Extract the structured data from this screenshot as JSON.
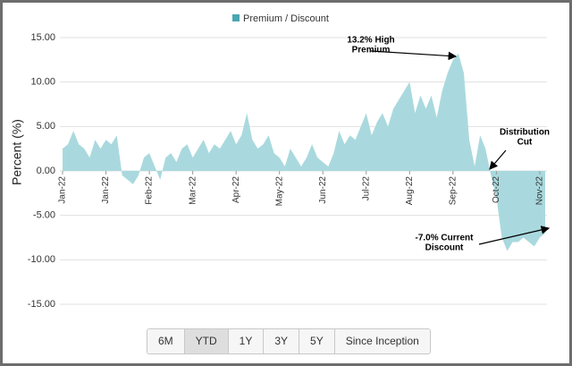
{
  "chart_data": {
    "type": "area",
    "y_label": "Percent (%)",
    "categories": [
      "Jan-22",
      null,
      null,
      null,
      null,
      null,
      null,
      null,
      "Jan-22",
      null,
      null,
      null,
      null,
      null,
      null,
      null,
      "Feb-22",
      null,
      null,
      null,
      null,
      null,
      null,
      null,
      "Mar-22",
      null,
      null,
      null,
      null,
      null,
      null,
      null,
      "Apr-22",
      null,
      null,
      null,
      null,
      null,
      null,
      null,
      "May-22",
      null,
      null,
      null,
      null,
      null,
      null,
      null,
      "Jun-22",
      null,
      null,
      null,
      null,
      null,
      null,
      null,
      "Jul-22",
      null,
      null,
      null,
      null,
      null,
      null,
      null,
      "Aug-22",
      null,
      null,
      null,
      null,
      null,
      null,
      null,
      "Sep-22",
      null,
      null,
      null,
      null,
      null,
      null,
      null,
      "Oct-22",
      null,
      null,
      null,
      null,
      null,
      null,
      null,
      "Nov-22",
      null
    ],
    "series": [
      {
        "name": "Premium / Discount",
        "color": "#a9d9de",
        "legend_color": "#4aa6b0",
        "values": [
          2.5,
          3,
          4.5,
          3,
          2.5,
          1.5,
          3.5,
          2.5,
          3.5,
          3,
          4,
          -0.5,
          -1,
          -1.5,
          -0.5,
          1.5,
          2,
          0.5,
          -1,
          1.5,
          2,
          1,
          2.5,
          3,
          1.5,
          2.5,
          3.5,
          2,
          3,
          2.5,
          3.5,
          4.5,
          3,
          4,
          6.5,
          3.5,
          2.5,
          3,
          4,
          2,
          1.5,
          0.5,
          2.5,
          1.5,
          0.5,
          1.5,
          3,
          1.5,
          1,
          0.5,
          2,
          4.5,
          3,
          4,
          3.5,
          5,
          6.5,
          4,
          5.5,
          6.5,
          5,
          7,
          8,
          9,
          10,
          6.5,
          8.5,
          7,
          8.5,
          6,
          9,
          11,
          12.5,
          13.2,
          11,
          3.5,
          0.5,
          4,
          2.5,
          -0.5,
          -3,
          -7.5,
          -9,
          -8,
          -8,
          -7.5,
          -8,
          -8.5,
          -7.5,
          -7
        ]
      }
    ],
    "ylim": [
      -15,
      15
    ],
    "yticks": [
      {
        "value": -15,
        "label": "-15.00"
      },
      {
        "value": -10,
        "label": "-10.00"
      },
      {
        "value": -5,
        "label": "-5.00"
      },
      {
        "value": 0,
        "label": "0.00"
      },
      {
        "value": 5,
        "label": "5.00"
      },
      {
        "value": 10,
        "label": "10.00"
      },
      {
        "value": 15,
        "label": "15.00"
      }
    ],
    "grid": true,
    "annotations": [
      {
        "lines": [
          "13.2% High",
          "Premium"
        ]
      },
      {
        "lines": [
          "Distribution",
          "Cut"
        ]
      },
      {
        "lines": [
          "-7.0% Current",
          "Discount"
        ]
      }
    ]
  },
  "range_buttons": {
    "options": [
      "6M",
      "YTD",
      "1Y",
      "3Y",
      "5Y",
      "Since Inception"
    ],
    "selected": 1
  }
}
